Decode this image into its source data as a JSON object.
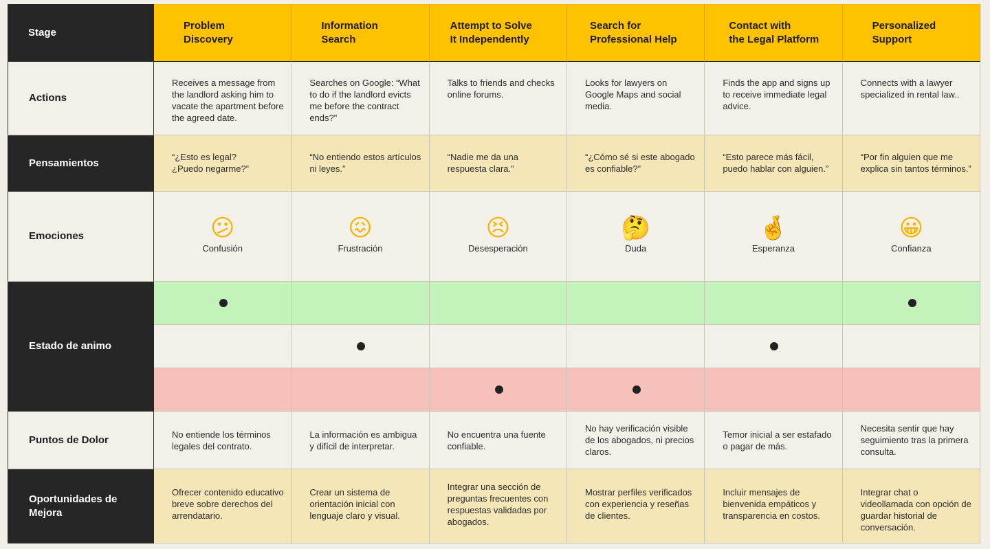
{
  "rows": {
    "stage": "Stage",
    "actions": "Actions",
    "thoughts": "Pensamientos",
    "emotions": "Emociones",
    "mood": "Estado de animo",
    "pain_points": "Puntos de Dolor",
    "opportunities": "Oportunidades de Mejora"
  },
  "stages": [
    {
      "title": "Problem\nDiscovery",
      "action": "Receives a message from the landlord asking him to vacate the apartment before the agreed date.",
      "thought": "“¿Esto es legal?\n¿Puedo negarme?”",
      "emoji": "😕",
      "emoji_icon": "confused-face-icon",
      "emotion": "Confusión",
      "mood_level": "high",
      "pain": "No entiende los términos legales del contrato.",
      "opportunity": "Ofrecer contenido educativo breve sobre derechos del arrendatario."
    },
    {
      "title": "Information\nSearch",
      "action": "Searches on Google: “What to do if the landlord evicts me before the contract ends?”",
      "thought": "“No entiendo estos artículos ni leyes.”",
      "emoji": "😖",
      "emoji_icon": "confounded-face-icon",
      "emotion": "Frustración",
      "mood_level": "medium",
      "pain": "La información es ambigua y difícil de interpretar.",
      "opportunity": "Crear un sistema de orientación inicial con lenguaje claro y visual."
    },
    {
      "title": "Attempt to Solve\nIt Independently",
      "action": "Talks to friends and checks online forums.",
      "thought": "“Nadie me da una respuesta clara.”",
      "emoji": "😣",
      "emoji_icon": "persevering-face-icon",
      "emotion": "Desesperación",
      "mood_level": "low",
      "pain": "No encuentra una fuente confiable.",
      "opportunity": "Integrar una sección de preguntas frecuentes con respuestas validadas por abogados."
    },
    {
      "title": "Search for\nProfessional Help",
      "action": "Looks for lawyers on Google Maps and social media.",
      "thought": "“¿Cómo sé si este abogado es confiable?”",
      "emoji": "🤔",
      "emoji_icon": "thinking-face-icon",
      "emotion": "Duda",
      "mood_level": "low",
      "pain": "No hay verificación visible de los abogados, ni precios claros.",
      "opportunity": "Mostrar perfiles verificados con experiencia y reseñas de clientes."
    },
    {
      "title": "Contact with\nthe Legal Platform",
      "action": "Finds the app and signs up to receive immediate legal advice.",
      "thought": "“Esto parece más fácil, puedo hablar con alguien.”",
      "emoji": "🤞",
      "emoji_icon": "crossed-fingers-icon",
      "emotion": "Esperanza",
      "mood_level": "medium",
      "pain": "Temor inicial a ser estafado o pagar de más.",
      "opportunity": "Incluir mensajes de bienvenida empáticos y transparencia en costos."
    },
    {
      "title": "Personalized\nSupport",
      "action": "Connects with a lawyer specialized in rental law..",
      "thought": "“Por fin alguien que me explica sin tantos términos.”",
      "emoji": "😀",
      "emoji_icon": "grinning-face-icon",
      "emotion": "Confianza",
      "mood_level": "high",
      "pain": "Necesita sentir que hay seguimiento tras la primera consulta.",
      "opportunity": "Integrar chat o videollamada con opción de guardar historial de conversación."
    }
  ],
  "colors": {
    "header": "#ffc200",
    "dark": "#262626",
    "light": "#f3f0ea",
    "cream": "#f5e6b8",
    "mood_high": "#c3f3bb",
    "mood_low": "#f6c0bb"
  }
}
